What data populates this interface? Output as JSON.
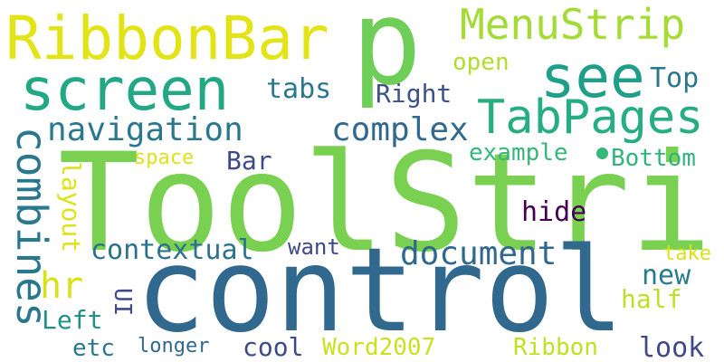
{
  "words": [
    {
      "text": "ToolStrip",
      "color": "#7ad151",
      "vertical": false
    },
    {
      "text": "control",
      "color": "#31688e",
      "vertical": false
    },
    {
      "text": "p",
      "color": "#6ece58",
      "vertical": false
    },
    {
      "text": "RibbonBar",
      "color": "#e2e418",
      "vertical": false
    },
    {
      "text": "screen",
      "color": "#22a884",
      "vertical": false
    },
    {
      "text": "see",
      "color": "#1f9e89",
      "vertical": false
    },
    {
      "text": "MenuStrip",
      "color": "#a5db36",
      "vertical": false
    },
    {
      "text": "TabPages",
      "color": "#26ad81",
      "vertical": false
    },
    {
      "text": "navigation",
      "color": "#2a788e",
      "vertical": false
    },
    {
      "text": "combines",
      "color": "#2a788e",
      "vertical": true
    },
    {
      "text": "complex",
      "color": "#31688e",
      "vertical": false
    },
    {
      "text": "contextual",
      "color": "#2c728e",
      "vertical": false
    },
    {
      "text": "document",
      "color": "#31688e",
      "vertical": false
    },
    {
      "text": "tabs",
      "color": "#2a788e",
      "vertical": false
    },
    {
      "text": "open",
      "color": "#b2dd2d",
      "vertical": false
    },
    {
      "text": "Top",
      "color": "#2a788e",
      "vertical": false
    },
    {
      "text": "Right",
      "color": "#3b528b",
      "vertical": false
    },
    {
      "text": "example",
      "color": "#35b779",
      "vertical": false
    },
    {
      "text": "Bottom",
      "color": "#2fb47c",
      "vertical": false
    },
    {
      "text": "Bar",
      "color": "#3e4989",
      "vertical": false
    },
    {
      "text": "space",
      "color": "#dde318",
      "vertical": false
    },
    {
      "text": "layout",
      "color": "#dde318",
      "vertical": true
    },
    {
      "text": "hide",
      "color": "#440154",
      "vertical": false
    },
    {
      "text": "hr",
      "color": "#d8e219",
      "vertical": false
    },
    {
      "text": "want",
      "color": "#3e4989",
      "vertical": false
    },
    {
      "text": "new",
      "color": "#287c8e",
      "vertical": false
    },
    {
      "text": "take",
      "color": "#d8e219",
      "vertical": false
    },
    {
      "text": "half",
      "color": "#bddf26",
      "vertical": false
    },
    {
      "text": "UI",
      "color": "#3e4989",
      "vertical": true
    },
    {
      "text": "Left",
      "color": "#21918c",
      "vertical": false
    },
    {
      "text": "etc",
      "color": "#2a788e",
      "vertical": false
    },
    {
      "text": "longer",
      "color": "#31688e",
      "vertical": false
    },
    {
      "text": "cool",
      "color": "#3e4989",
      "vertical": false
    },
    {
      "text": "Word2007",
      "color": "#cae11f",
      "vertical": false
    },
    {
      "text": "Ribbon",
      "color": "#c2df23",
      "vertical": false
    },
    {
      "text": "look",
      "color": "#3e4989",
      "vertical": false
    }
  ],
  "dot": {
    "color": "#35b779"
  }
}
